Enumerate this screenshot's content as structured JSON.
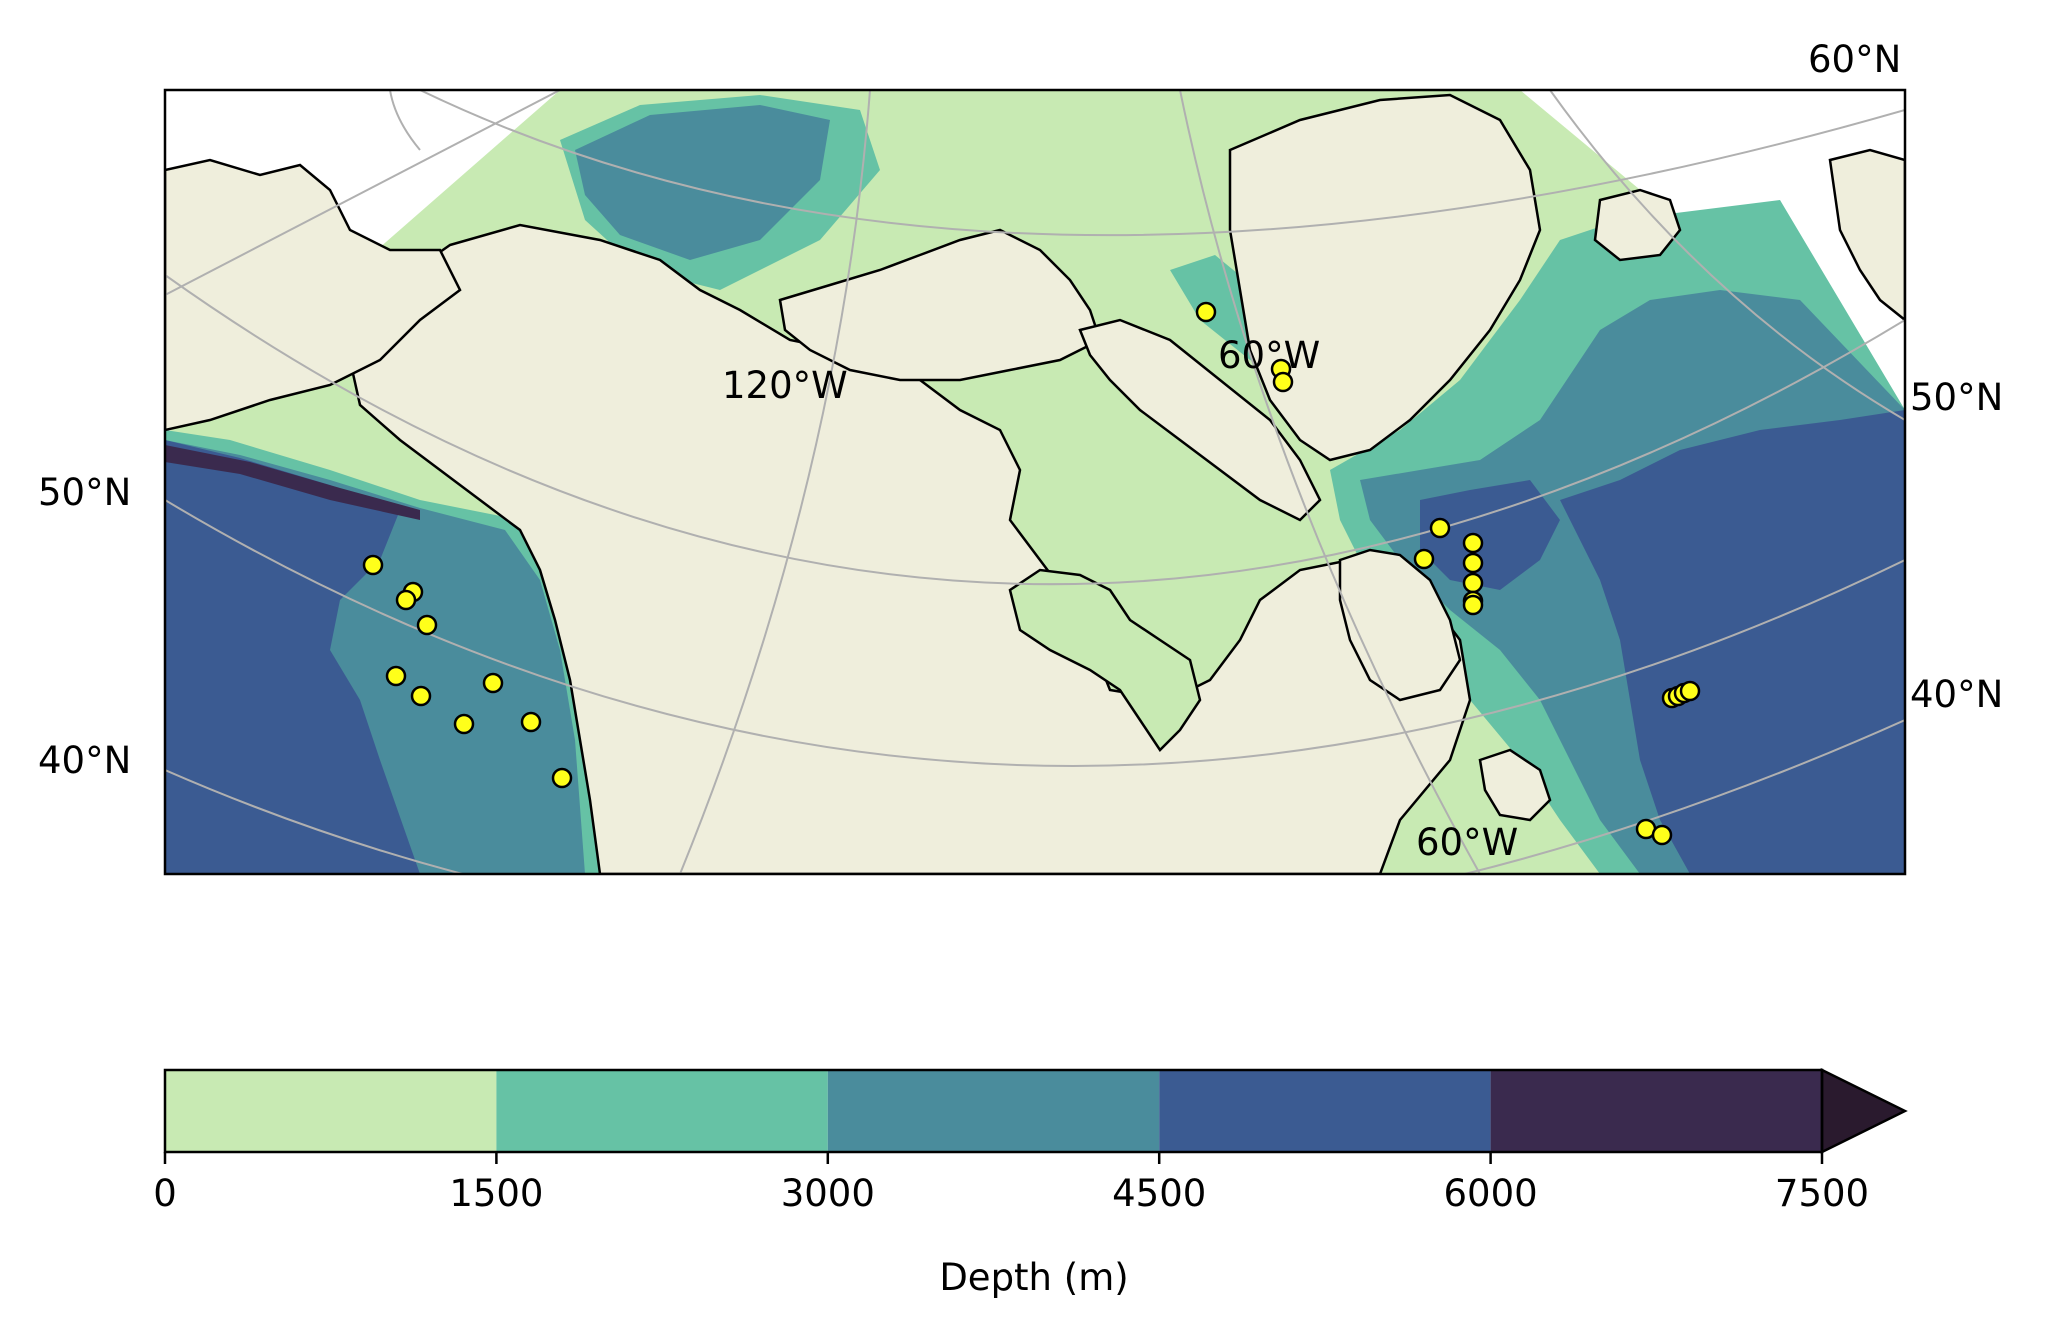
{
  "chart_data": {
    "type": "map",
    "projection": "conic (Lambert-like), North America / North Atlantic / North Pacific",
    "basemap": {
      "land_color": "#efeedc",
      "coastline_color": "#000000",
      "gridline_color": "#b0b0b0",
      "ocean_depth_filled_contours": true
    },
    "gridline_labels": {
      "lat_left": [
        "50°N",
        "40°N"
      ],
      "lat_right": [
        "60°N",
        "50°N",
        "40°N"
      ],
      "lon_inline": [
        "120°W",
        "60°W",
        "60°W"
      ]
    },
    "points": {
      "marker": "circle",
      "fill": "#ffff1a",
      "edge": "#000000",
      "count": 33,
      "note": "sampling station locations in NE Pacific, Baffin Bay, Labrador Sea and NW Atlantic"
    },
    "colorbar": {
      "label": "Depth (m)",
      "ticks": [
        "0",
        "1500",
        "3000",
        "4500",
        "6000",
        "7500"
      ],
      "levels": [
        0,
        1500,
        3000,
        4500,
        6000,
        7500
      ],
      "extend": "max",
      "colors": [
        "#c8eab3",
        "#66c2a5",
        "#4a8c9c",
        "#3b5b92",
        "#3a2a4e",
        "#2a1a2e"
      ]
    }
  }
}
